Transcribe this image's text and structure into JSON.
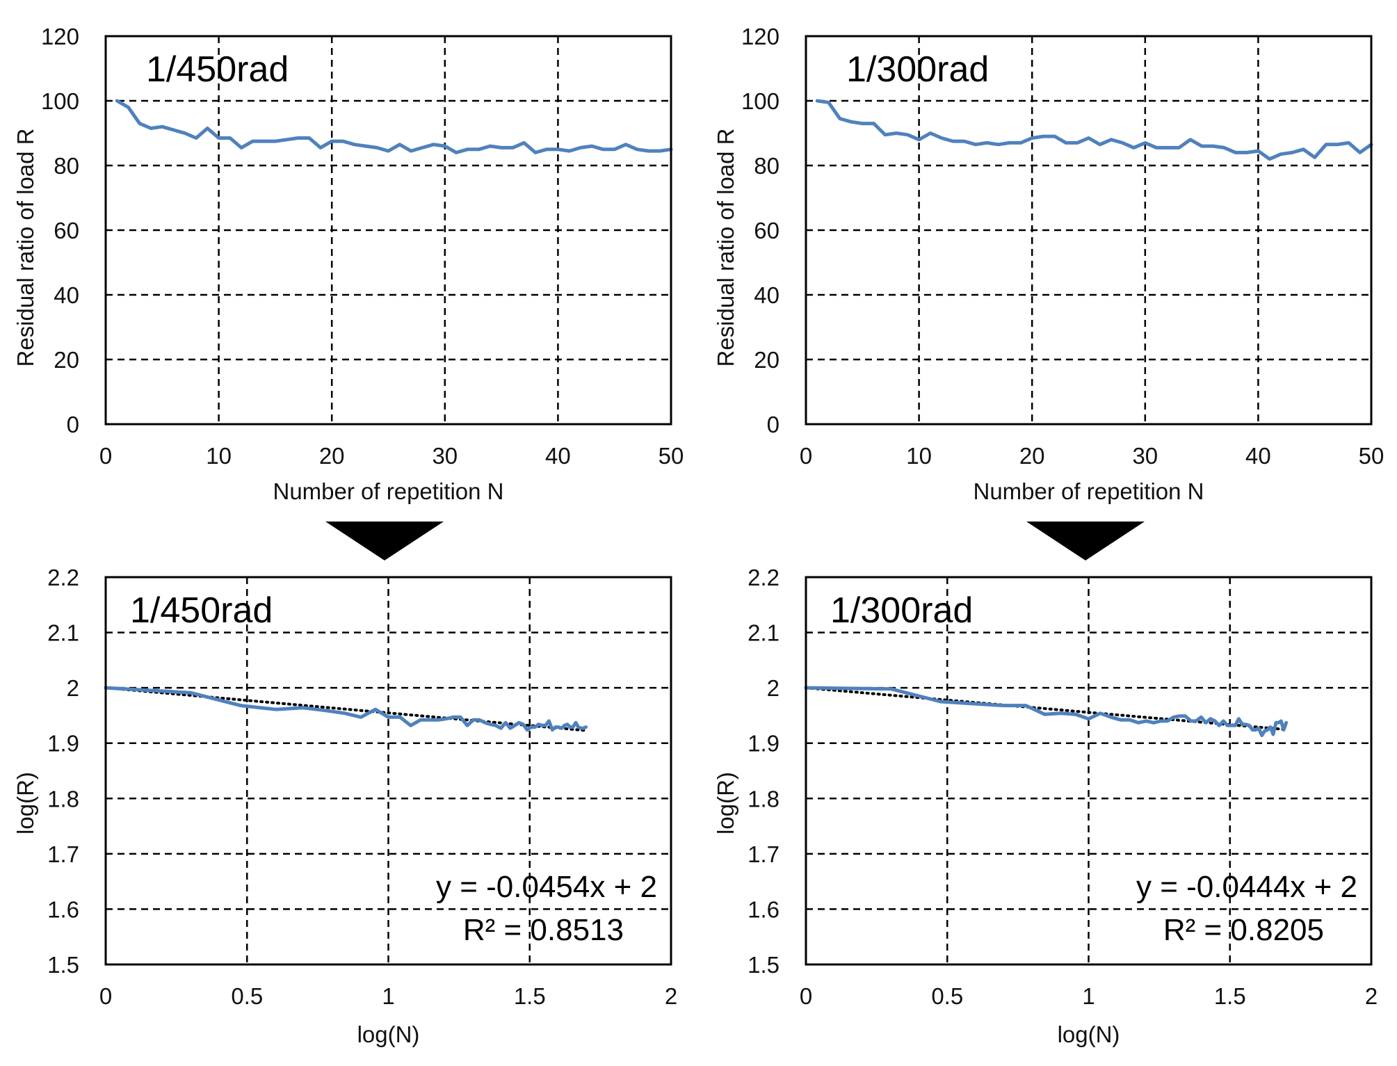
{
  "colors": {
    "series": "#4f81bd",
    "trendline": "#000000",
    "grid": "#000000",
    "arrow": "#000000"
  },
  "chart_data": [
    {
      "id": "top-left",
      "type": "line",
      "title": "1/450rad",
      "xlabel": "Number of repetition N",
      "ylabel": "Residual ratio of load R",
      "xlim": [
        0,
        50
      ],
      "ylim": [
        0,
        120
      ],
      "xticks": [
        0,
        10,
        20,
        30,
        40,
        50
      ],
      "yticks": [
        0,
        20,
        40,
        60,
        80,
        100,
        120
      ],
      "x_tick_labels": [
        "0",
        "10",
        "20",
        "30",
        "40",
        "50"
      ],
      "y_tick_labels": [
        "0",
        "20",
        "40",
        "60",
        "80",
        "100",
        "120"
      ],
      "grid": true,
      "series": [
        {
          "name": "1/450rad",
          "x": [
            1,
            2,
            3,
            4,
            5,
            6,
            7,
            8,
            9,
            10,
            11,
            12,
            13,
            14,
            15,
            16,
            17,
            18,
            19,
            20,
            21,
            22,
            23,
            24,
            25,
            26,
            27,
            28,
            29,
            30,
            31,
            32,
            33,
            34,
            35,
            36,
            37,
            38,
            39,
            40,
            41,
            42,
            43,
            44,
            45,
            46,
            47,
            48,
            49,
            50
          ],
          "values": [
            100,
            98,
            93,
            91.5,
            92,
            91,
            90,
            88.5,
            91.5,
            88.5,
            88.5,
            85.5,
            87.5,
            87.5,
            87.5,
            88,
            88.5,
            88.5,
            85.5,
            87.5,
            87.5,
            86.5,
            86,
            85.5,
            84.5,
            86.5,
            84.5,
            85.5,
            86.5,
            86,
            84,
            85,
            85,
            86,
            85.5,
            85.5,
            87,
            84,
            85,
            85,
            84.5,
            85.5,
            86,
            85,
            85,
            86.5,
            85,
            84.5,
            84.5,
            85
          ]
        }
      ]
    },
    {
      "id": "top-right",
      "type": "line",
      "title": "1/300rad",
      "xlabel": "Number of repetition N",
      "ylabel": "Residual ratio of load R",
      "xlim": [
        0,
        50
      ],
      "ylim": [
        0,
        120
      ],
      "xticks": [
        0,
        10,
        20,
        30,
        40,
        50
      ],
      "yticks": [
        0,
        20,
        40,
        60,
        80,
        100,
        120
      ],
      "x_tick_labels": [
        "0",
        "10",
        "20",
        "30",
        "40",
        "50"
      ],
      "y_tick_labels": [
        "0",
        "20",
        "40",
        "60",
        "80",
        "100",
        "120"
      ],
      "grid": true,
      "series": [
        {
          "name": "1/300rad",
          "x": [
            1,
            2,
            3,
            4,
            5,
            6,
            7,
            8,
            9,
            10,
            11,
            12,
            13,
            14,
            15,
            16,
            17,
            18,
            19,
            20,
            21,
            22,
            23,
            24,
            25,
            26,
            27,
            28,
            29,
            30,
            31,
            32,
            33,
            34,
            35,
            36,
            37,
            38,
            39,
            40,
            41,
            42,
            43,
            44,
            45,
            46,
            47,
            48,
            49,
            50
          ],
          "values": [
            100,
            99.5,
            94.5,
            93.5,
            93,
            93,
            89.5,
            90,
            89.5,
            88,
            90,
            88.5,
            87.5,
            87.5,
            86.5,
            87,
            86.5,
            87,
            87,
            88.5,
            89,
            89,
            87,
            87,
            88.5,
            86.5,
            88,
            87,
            85.5,
            87,
            85.5,
            85.5,
            85.5,
            88,
            86,
            86,
            85.5,
            84,
            84,
            84.5,
            82,
            83.5,
            84,
            85,
            82.5,
            86.5,
            86.5,
            87,
            84,
            86.5
          ]
        }
      ]
    },
    {
      "id": "bottom-left",
      "type": "line",
      "title": "1/450rad",
      "xlabel": "log(N)",
      "ylabel": "log(R)",
      "xlim": [
        0,
        2
      ],
      "ylim": [
        1.5,
        2.2
      ],
      "xticks": [
        0,
        0.5,
        1,
        1.5,
        2
      ],
      "yticks": [
        1.5,
        1.6,
        1.7,
        1.8,
        1.9,
        2.0,
        2.1,
        2.2
      ],
      "x_tick_labels": [
        "0",
        "0.5",
        "1",
        "1.5",
        "2"
      ],
      "y_tick_labels": [
        "1.5",
        "1.6",
        "1.7",
        "1.8",
        "1.9",
        "2",
        "2.1",
        "2.2"
      ],
      "grid": true,
      "equation": "y = -0.0454x + 2",
      "r_squared": "R² = 0.8513",
      "trendline": {
        "slope": -0.0454,
        "intercept": 2,
        "x_range": [
          0,
          1.699
        ]
      },
      "series": [
        {
          "name": "1/450rad",
          "x": [
            0,
            0.301,
            0.477,
            0.602,
            0.699,
            0.778,
            0.845,
            0.903,
            0.954,
            1.0,
            1.041,
            1.079,
            1.114,
            1.146,
            1.176,
            1.204,
            1.23,
            1.255,
            1.279,
            1.301,
            1.322,
            1.342,
            1.362,
            1.38,
            1.398,
            1.415,
            1.431,
            1.447,
            1.462,
            1.477,
            1.491,
            1.505,
            1.519,
            1.531,
            1.544,
            1.556,
            1.568,
            1.58,
            1.591,
            1.602,
            1.613,
            1.623,
            1.633,
            1.643,
            1.653,
            1.663,
            1.672,
            1.681,
            1.69,
            1.699
          ],
          "values": [
            2.0,
            1.991,
            1.968,
            1.961,
            1.964,
            1.959,
            1.954,
            1.947,
            1.961,
            1.947,
            1.947,
            1.932,
            1.942,
            1.942,
            1.942,
            1.944,
            1.947,
            1.947,
            1.932,
            1.942,
            1.942,
            1.937,
            1.934,
            1.932,
            1.927,
            1.937,
            1.927,
            1.932,
            1.937,
            1.934,
            1.924,
            1.929,
            1.929,
            1.934,
            1.932,
            1.932,
            1.94,
            1.924,
            1.929,
            1.929,
            1.927,
            1.932,
            1.934,
            1.929,
            1.929,
            1.937,
            1.929,
            1.927,
            1.927,
            1.929
          ]
        }
      ]
    },
    {
      "id": "bottom-right",
      "type": "line",
      "title": "1/300rad",
      "xlabel": "log(N)",
      "ylabel": "log(R)",
      "xlim": [
        0,
        2
      ],
      "ylim": [
        1.5,
        2.2
      ],
      "xticks": [
        0,
        0.5,
        1,
        1.5,
        2
      ],
      "yticks": [
        1.5,
        1.6,
        1.7,
        1.8,
        1.9,
        2.0,
        2.1,
        2.2
      ],
      "x_tick_labels": [
        "0",
        "0.5",
        "1",
        "1.5",
        "2"
      ],
      "y_tick_labels": [
        "1.5",
        "1.6",
        "1.7",
        "1.8",
        "1.9",
        "2",
        "2.1",
        "2.2"
      ],
      "grid": true,
      "equation": "y = -0.0444x + 2",
      "r_squared": "R² = 0.8205",
      "trendline": {
        "slope": -0.0444,
        "intercept": 2,
        "x_range": [
          0,
          1.699
        ]
      },
      "series": [
        {
          "name": "1/300rad",
          "x": [
            0,
            0.301,
            0.477,
            0.602,
            0.699,
            0.778,
            0.845,
            0.903,
            0.954,
            1.0,
            1.041,
            1.079,
            1.114,
            1.146,
            1.176,
            1.204,
            1.23,
            1.255,
            1.279,
            1.301,
            1.322,
            1.342,
            1.362,
            1.38,
            1.398,
            1.415,
            1.431,
            1.447,
            1.462,
            1.477,
            1.491,
            1.505,
            1.519,
            1.531,
            1.544,
            1.556,
            1.568,
            1.58,
            1.591,
            1.602,
            1.613,
            1.623,
            1.633,
            1.643,
            1.653,
            1.663,
            1.672,
            1.681,
            1.69,
            1.699
          ],
          "values": [
            2.0,
            1.998,
            1.975,
            1.971,
            1.968,
            1.968,
            1.952,
            1.954,
            1.952,
            1.944,
            1.954,
            1.947,
            1.942,
            1.942,
            1.937,
            1.94,
            1.937,
            1.94,
            1.94,
            1.947,
            1.949,
            1.949,
            1.94,
            1.94,
            1.947,
            1.937,
            1.944,
            1.94,
            1.932,
            1.94,
            1.932,
            1.932,
            1.932,
            1.944,
            1.934,
            1.934,
            1.932,
            1.924,
            1.924,
            1.927,
            1.914,
            1.922,
            1.924,
            1.929,
            1.916,
            1.937,
            1.937,
            1.94,
            1.924,
            1.937
          ]
        }
      ]
    }
  ]
}
